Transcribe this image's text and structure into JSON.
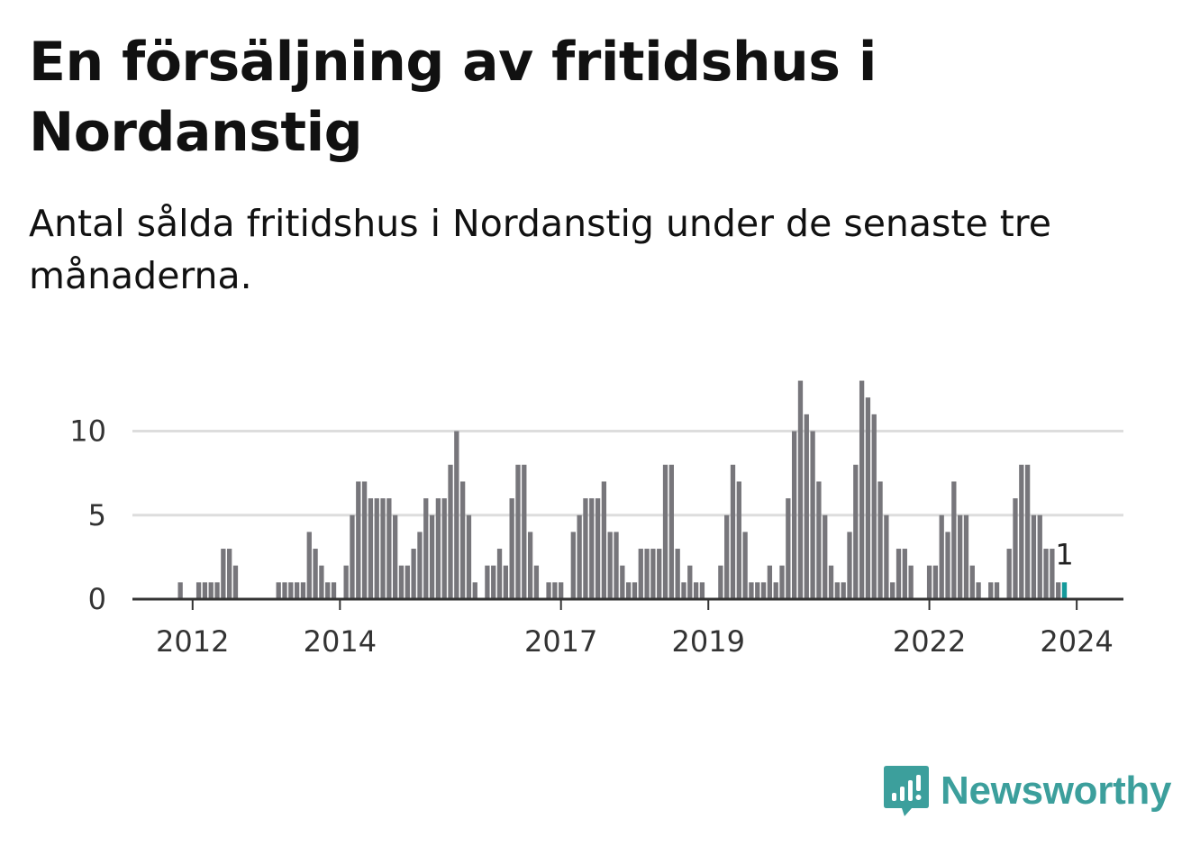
{
  "title": "En försäljning av fritidshus i Nordanstig",
  "subtitle": "Antal sålda fritidshus i Nordanstig under de senaste tre månaderna.",
  "brand": {
    "name": "Newsworthy",
    "color": "#3c9f9c",
    "icon": "chart-bubble-icon"
  },
  "colors": {
    "bar": "#77767b",
    "highlight": "#159a9b",
    "grid": "#dddddd",
    "axis": "#333333"
  },
  "chart_data": {
    "type": "bar",
    "start": "2011-11",
    "frequency": "monthly",
    "values": [
      1,
      0,
      0,
      1,
      1,
      1,
      1,
      3,
      3,
      2,
      0,
      0,
      0,
      0,
      0,
      0,
      1,
      1,
      1,
      1,
      1,
      4,
      3,
      2,
      1,
      1,
      0,
      2,
      5,
      7,
      7,
      6,
      6,
      6,
      6,
      5,
      2,
      2,
      3,
      4,
      6,
      5,
      6,
      6,
      8,
      10,
      7,
      5,
      1,
      0,
      2,
      2,
      3,
      2,
      6,
      8,
      8,
      4,
      2,
      0,
      1,
      1,
      1,
      0,
      4,
      5,
      6,
      6,
      6,
      7,
      4,
      4,
      2,
      1,
      1,
      3,
      3,
      3,
      3,
      8,
      8,
      3,
      1,
      2,
      1,
      1,
      0,
      0,
      2,
      5,
      8,
      7,
      4,
      1,
      1,
      1,
      2,
      1,
      2,
      6,
      10,
      13,
      11,
      10,
      7,
      5,
      2,
      1,
      1,
      4,
      8,
      13,
      12,
      11,
      7,
      5,
      1,
      3,
      3,
      2,
      0,
      0,
      2,
      2,
      5,
      4,
      7,
      5,
      5,
      2,
      1,
      0,
      1,
      1,
      0,
      3,
      6,
      8,
      8,
      5,
      5,
      3,
      3,
      1,
      1
    ],
    "highlight_last": true,
    "value_label": "1",
    "ylim": [
      0,
      13
    ],
    "yticks": [
      0,
      5,
      10
    ],
    "xticks": [
      "2012",
      "2014",
      "2017",
      "2019",
      "2022",
      "2024"
    ],
    "grid": true,
    "legend": "none"
  }
}
